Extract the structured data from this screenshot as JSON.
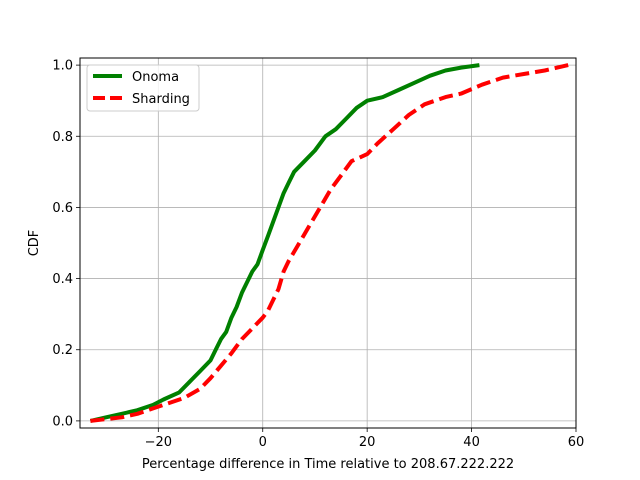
{
  "chart_data": {
    "type": "line",
    "title": "",
    "xlabel": "Percentage difference in Time relative to 208.67.222.222",
    "ylabel": "CDF",
    "xlim": [
      -35,
      60
    ],
    "ylim": [
      -0.02,
      1.02
    ],
    "xticks": [
      -20,
      0,
      20,
      40,
      60
    ],
    "yticks": [
      0.0,
      0.2,
      0.4,
      0.6,
      0.8,
      1.0
    ],
    "xtick_labels": [
      "−20",
      "0",
      "20",
      "40",
      "60"
    ],
    "ytick_labels": [
      "0.0",
      "0.2",
      "0.4",
      "0.6",
      "0.8",
      "1.0"
    ],
    "grid": true,
    "legend_position": "top-left",
    "series": [
      {
        "name": "Onoma",
        "color": "#008000",
        "style": "solid",
        "x": [
          -33,
          -30,
          -27,
          -24,
          -21,
          -19,
          -16,
          -14,
          -12,
          -10,
          -9,
          -8,
          -7,
          -6,
          -5,
          -4,
          -3,
          -2,
          -1,
          0,
          1,
          2,
          3,
          4,
          5,
          6,
          8,
          10,
          12,
          14,
          16,
          18,
          19,
          20,
          23,
          26,
          29,
          32,
          35,
          38,
          41.5
        ],
        "y": [
          0.0,
          0.01,
          0.02,
          0.03,
          0.045,
          0.06,
          0.08,
          0.11,
          0.14,
          0.17,
          0.2,
          0.23,
          0.25,
          0.29,
          0.32,
          0.36,
          0.39,
          0.42,
          0.44,
          0.48,
          0.52,
          0.56,
          0.6,
          0.64,
          0.67,
          0.7,
          0.73,
          0.76,
          0.8,
          0.82,
          0.85,
          0.88,
          0.89,
          0.9,
          0.91,
          0.93,
          0.95,
          0.97,
          0.985,
          0.993,
          1.0
        ]
      },
      {
        "name": "Sharding",
        "color": "#ff0000",
        "style": "dashed",
        "x": [
          -33,
          -30,
          -27,
          -24,
          -21,
          -18,
          -15,
          -12,
          -10,
          -8,
          -6,
          -4,
          -2,
          0,
          1,
          2,
          3,
          4,
          5,
          7,
          9,
          11,
          13,
          15,
          17,
          20,
          22,
          25,
          28,
          31,
          35,
          38,
          42,
          46,
          50,
          54,
          58.5
        ],
        "y": [
          0.0,
          0.005,
          0.01,
          0.02,
          0.035,
          0.05,
          0.065,
          0.09,
          0.12,
          0.155,
          0.19,
          0.23,
          0.26,
          0.29,
          0.31,
          0.34,
          0.37,
          0.42,
          0.45,
          0.5,
          0.55,
          0.6,
          0.65,
          0.69,
          0.73,
          0.75,
          0.78,
          0.82,
          0.86,
          0.89,
          0.91,
          0.92,
          0.945,
          0.965,
          0.975,
          0.985,
          1.0
        ]
      }
    ]
  }
}
